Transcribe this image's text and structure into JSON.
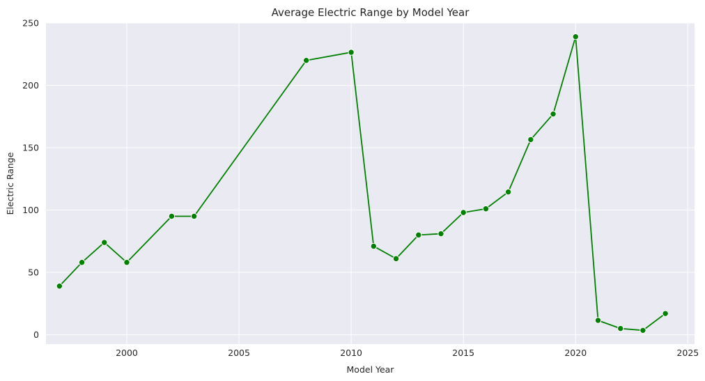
{
  "chart_data": {
    "type": "line",
    "title": "Average Electric Range by Model Year",
    "xlabel": "Model Year",
    "ylabel": "Electric Range",
    "xlim": [
      1996.4,
      2025.3
    ],
    "ylim": [
      -7.5,
      250
    ],
    "xticks": [
      2000,
      2005,
      2010,
      2015,
      2020,
      2025
    ],
    "yticks": [
      0,
      50,
      100,
      150,
      200,
      250
    ],
    "grid": true,
    "legend": "none",
    "colors": {
      "line": "#008000",
      "marker_fill": "#008000",
      "marker_edge": "#ffffff",
      "plot_background": "#eaeaf2",
      "grid": "#ffffff",
      "text": "#262626"
    },
    "series": [
      {
        "x": [
          1997,
          1998,
          1999,
          2000,
          2002,
          2003,
          2008,
          2010,
          2011,
          2012,
          2013,
          2014,
          2015,
          2016,
          2017,
          2018,
          2019,
          2020,
          2021,
          2022,
          2023,
          2024
        ],
        "y": [
          39,
          58,
          74,
          58,
          95,
          95,
          220,
          226.5,
          71,
          61,
          80,
          81,
          98,
          101,
          114.5,
          156.5,
          177,
          239,
          11.5,
          5,
          3.5,
          17
        ]
      }
    ]
  }
}
